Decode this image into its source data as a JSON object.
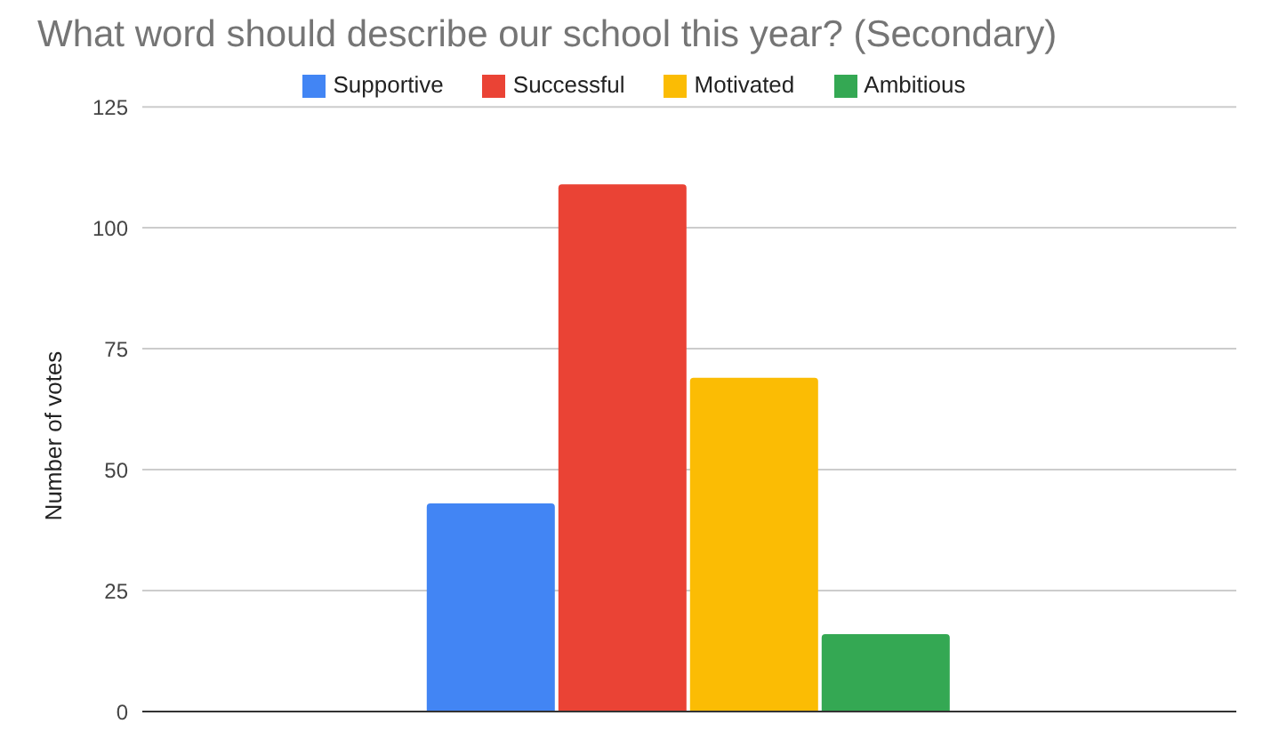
{
  "chart_data": {
    "type": "bar",
    "title": "What word should describe our school this year? (Secondary)",
    "ylabel": "Number of votes",
    "categories": [
      null
    ],
    "series": [
      {
        "name": "Supportive",
        "color": "#4285f4",
        "values": [
          43
        ]
      },
      {
        "name": "Successful",
        "color": "#ea4335",
        "values": [
          109
        ]
      },
      {
        "name": "Motivated",
        "color": "#fbbc04",
        "values": [
          69
        ]
      },
      {
        "name": "Ambitious",
        "color": "#34a853",
        "values": [
          16
        ]
      }
    ],
    "ylim": [
      0,
      125
    ],
    "yticks": [
      0,
      25,
      50,
      75,
      100,
      125
    ],
    "grid": "y",
    "legend": "top"
  }
}
